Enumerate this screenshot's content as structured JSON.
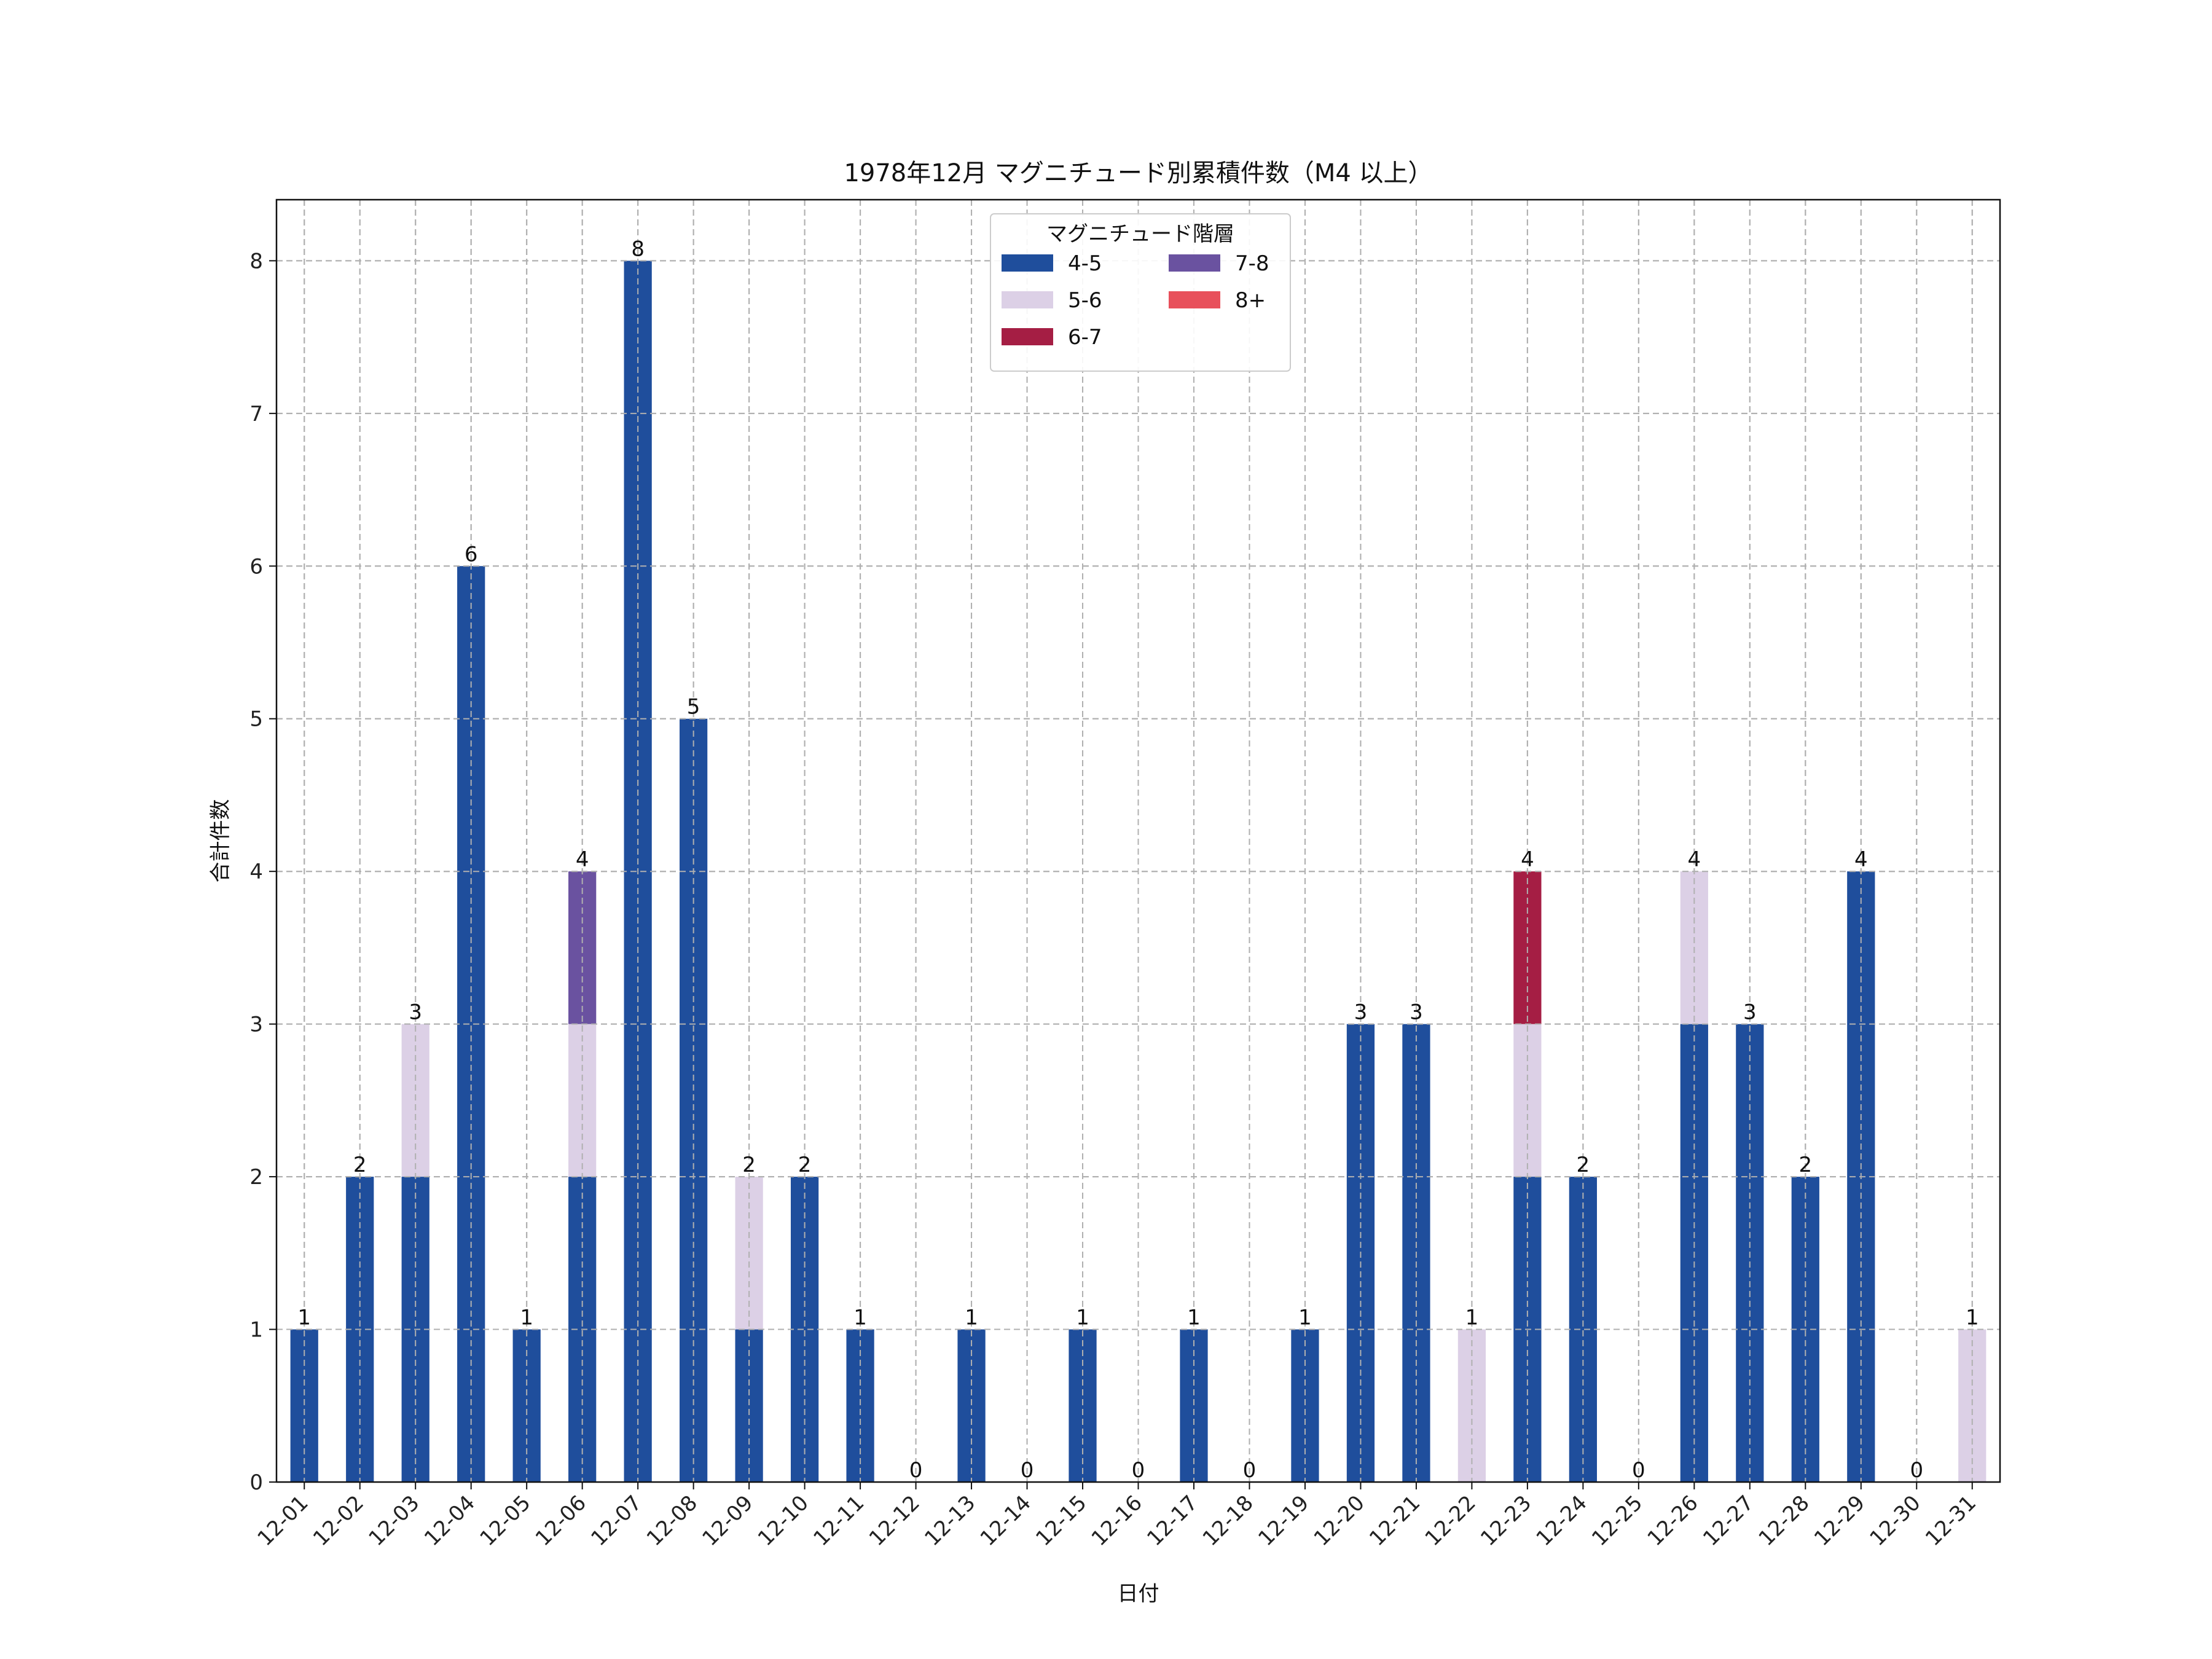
{
  "chart_data": {
    "type": "bar",
    "stacked": true,
    "title": "1978年12月 マグニチュード別累積件数（M4 以上）",
    "xlabel": "日付",
    "ylabel": "合計件数",
    "ylim": [
      0,
      8.4
    ],
    "yticks": [
      0,
      1,
      2,
      3,
      4,
      5,
      6,
      7,
      8
    ],
    "grid": true,
    "legend_title": "マグニチュード階層",
    "legend_placement": "top-center",
    "categories": [
      "12-01",
      "12-02",
      "12-03",
      "12-04",
      "12-05",
      "12-06",
      "12-07",
      "12-08",
      "12-09",
      "12-10",
      "12-11",
      "12-12",
      "12-13",
      "12-14",
      "12-15",
      "12-16",
      "12-17",
      "12-18",
      "12-19",
      "12-20",
      "12-21",
      "12-22",
      "12-23",
      "12-24",
      "12-25",
      "12-26",
      "12-27",
      "12-28",
      "12-29",
      "12-30",
      "12-31"
    ],
    "series": [
      {
        "name": "4-5",
        "color": "#1f4e9c",
        "values": [
          1,
          2,
          2,
          6,
          1,
          2,
          8,
          5,
          1,
          2,
          1,
          0,
          1,
          0,
          1,
          0,
          1,
          0,
          1,
          3,
          3,
          0,
          2,
          2,
          0,
          3,
          3,
          2,
          4,
          0,
          0
        ]
      },
      {
        "name": "5-6",
        "color": "#dcd0e6",
        "values": [
          0,
          0,
          1,
          0,
          0,
          1,
          0,
          0,
          1,
          0,
          0,
          0,
          0,
          0,
          0,
          0,
          0,
          0,
          0,
          0,
          0,
          1,
          1,
          0,
          0,
          1,
          0,
          0,
          0,
          0,
          1
        ]
      },
      {
        "name": "6-7",
        "color": "#a51e44",
        "values": [
          0,
          0,
          0,
          0,
          0,
          0,
          0,
          0,
          0,
          0,
          0,
          0,
          0,
          0,
          0,
          0,
          0,
          0,
          0,
          0,
          0,
          0,
          1,
          0,
          0,
          0,
          0,
          0,
          0,
          0,
          0
        ]
      },
      {
        "name": "7-8",
        "color": "#6a52a0",
        "values": [
          0,
          0,
          0,
          0,
          0,
          1,
          0,
          0,
          0,
          0,
          0,
          0,
          0,
          0,
          0,
          0,
          0,
          0,
          0,
          0,
          0,
          0,
          0,
          0,
          0,
          0,
          0,
          0,
          0,
          0,
          0
        ]
      },
      {
        "name": "8+",
        "color": "#e8505b",
        "values": [
          0,
          0,
          0,
          0,
          0,
          0,
          0,
          0,
          0,
          0,
          0,
          0,
          0,
          0,
          0,
          0,
          0,
          0,
          0,
          0,
          0,
          0,
          0,
          0,
          0,
          0,
          0,
          0,
          0,
          0,
          0
        ]
      }
    ],
    "totals": [
      1,
      2,
      3,
      6,
      1,
      4,
      8,
      5,
      2,
      2,
      1,
      0,
      1,
      0,
      1,
      0,
      1,
      0,
      1,
      3,
      3,
      1,
      4,
      2,
      0,
      4,
      3,
      2,
      4,
      0,
      1
    ]
  }
}
